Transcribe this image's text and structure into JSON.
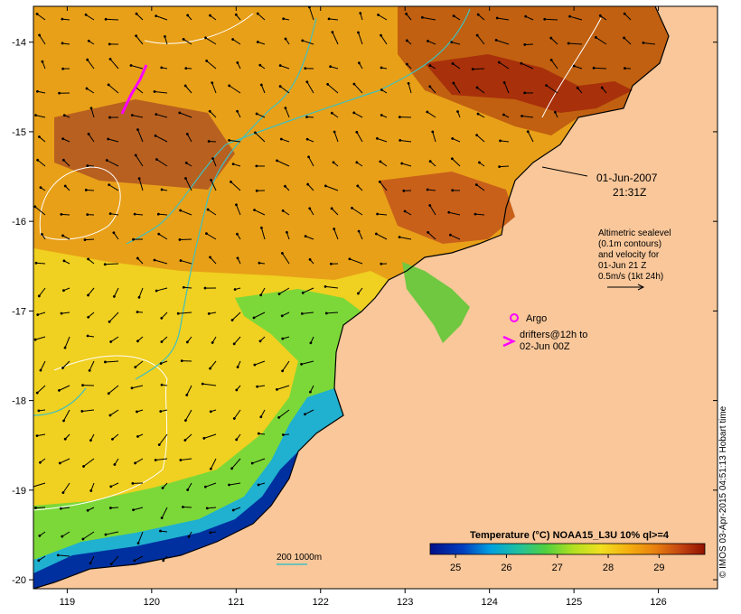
{
  "map": {
    "lon_ticks": [
      "119",
      "120",
      "121",
      "122",
      "123",
      "124",
      "125",
      "126"
    ],
    "lat_ticks": [
      "-14",
      "-15",
      "-16",
      "-17",
      "-18",
      "-19",
      "-20"
    ],
    "lon_range": [
      118.6,
      126.7
    ],
    "lat_range": [
      -20.1,
      -13.6
    ]
  },
  "annotations": {
    "date": "01-Jun-2007",
    "time": "21:31Z",
    "altimetry": [
      "Altimetric sealevel",
      "(0.1m contours)",
      "and velocity for",
      "01-Jun 21 Z",
      "0.5m/s (1kt 24h)"
    ],
    "argo_label": "Argo",
    "drifters_label": [
      "drifters@12h to",
      "02-Jun 00Z"
    ],
    "isobath_label": "200  1000m"
  },
  "colorbar": {
    "title": "Temperature (°C) NOAA15_L3U 10% ql>=4",
    "ticks": [
      "25",
      "26",
      "27",
      "28",
      "29"
    ],
    "range": [
      24.5,
      29.9
    ]
  },
  "credit": "© IMOS 03-Apr-2015 04:51:13 Hobart time",
  "colors": {
    "land": "#f9c79a",
    "sst_warm": "#b85410",
    "sst_mid": "#e69a10",
    "sst_cool": "#f0d520",
    "sst_green": "#60d040",
    "sst_blue": "#0030a0",
    "drifter": "#ff00ff",
    "isobath": "#40c0c0",
    "sealevel_contour": "#ffffff"
  }
}
